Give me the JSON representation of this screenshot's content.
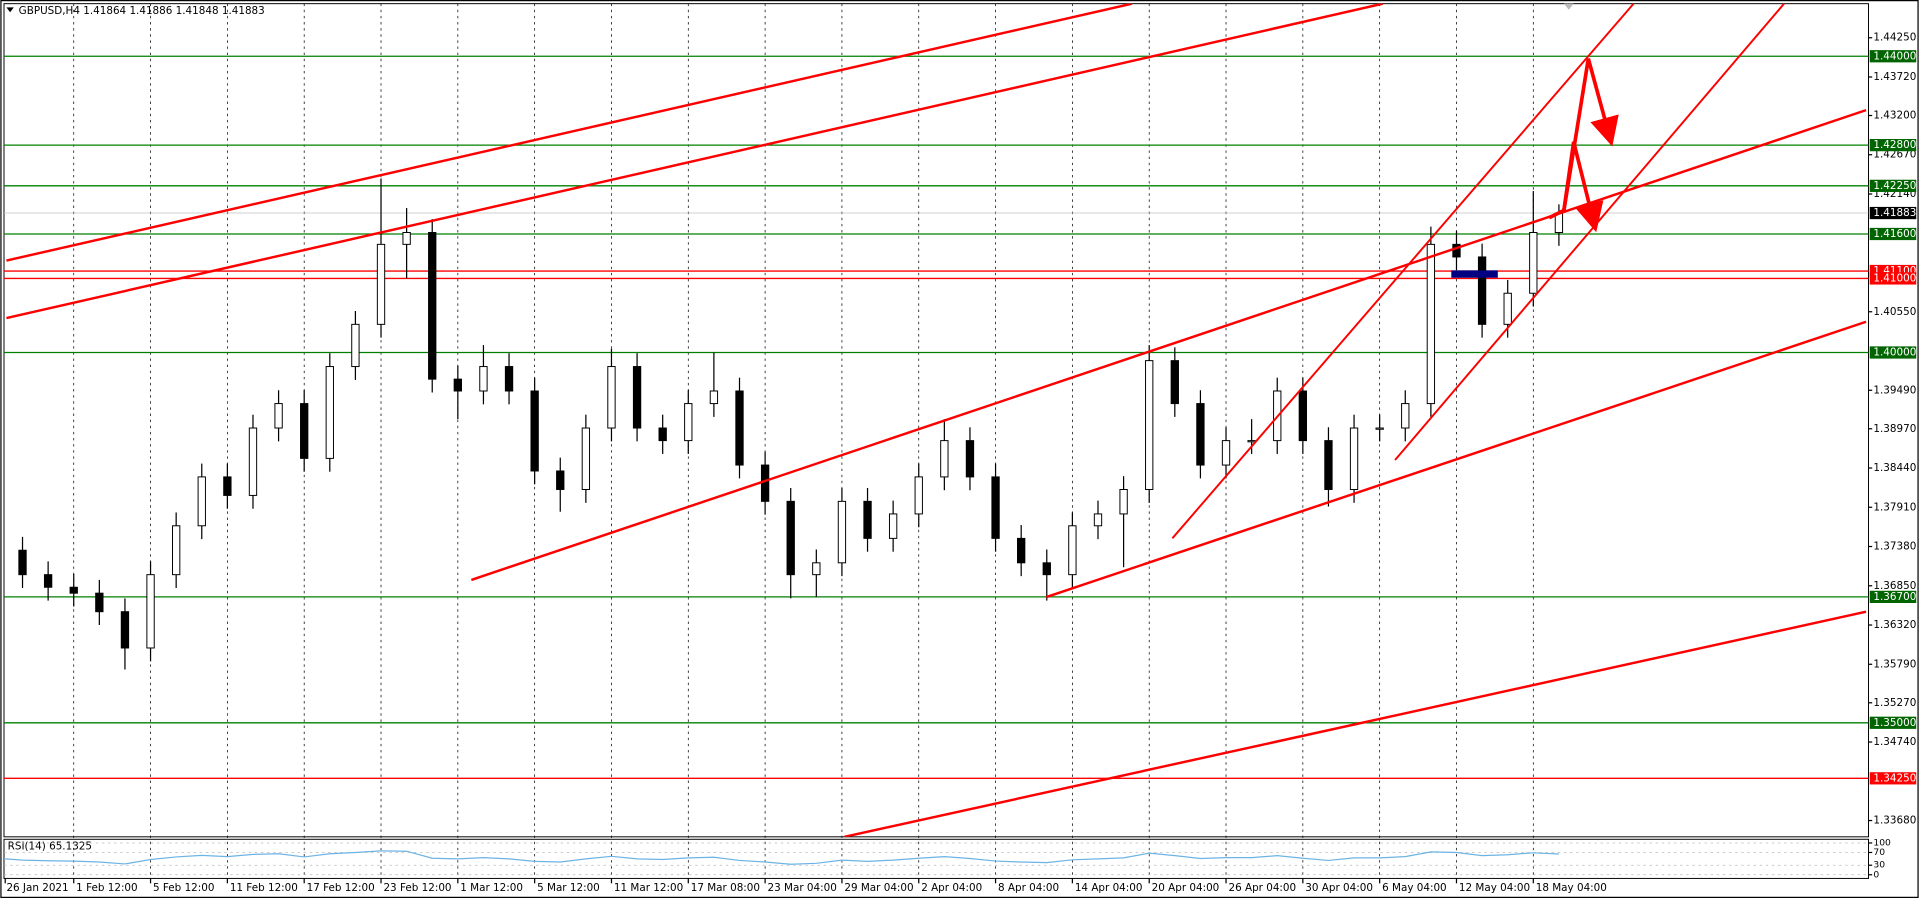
{
  "chart_data": [
    {
      "type": "candlestick",
      "title": "GBPUSD,H4  1.41864 1.41886 1.41848 1.41883",
      "categories": [
        "26 Jan 2021",
        null,
        null,
        "1 Feb 12:00",
        null,
        null,
        "5 Feb 12:00",
        null,
        null,
        "11 Feb 12:00",
        null,
        null,
        "17 Feb 12:00",
        null,
        null,
        "23 Feb 12:00",
        null,
        null,
        "1 Mar 12:00",
        null,
        null,
        "5 Mar 12:00",
        null,
        null,
        "11 Mar 12:00",
        null,
        null,
        "17 Mar 08:00",
        null,
        null,
        "23 Mar 04:00",
        null,
        null,
        "29 Mar 04:00",
        null,
        null,
        "2 Apr 04:00",
        null,
        null,
        "8 Apr 04:00",
        null,
        null,
        "14 Apr 04:00",
        null,
        null,
        "20 Apr 04:00",
        null,
        null,
        "26 Apr 04:00",
        null,
        null,
        "30 Apr 04:00",
        null,
        null,
        "6 May 04:00",
        null,
        null,
        "12 May 04:00",
        null,
        null,
        "18 May 04:00",
        null
      ],
      "open": [
        1.3745,
        1.3733,
        1.37,
        1.3683,
        1.3675,
        1.365,
        1.3601,
        1.37,
        1.3766,
        1.3832,
        1.3807,
        1.3898,
        1.3931,
        1.3857,
        1.3981,
        1.4038,
        1.4146,
        1.4162,
        1.3964,
        1.3948,
        1.3981,
        1.3948,
        1.384,
        1.3815,
        1.3898,
        1.3981,
        1.3898,
        1.3881,
        1.3931,
        1.3948,
        1.3848,
        1.3799,
        1.37,
        1.3716,
        1.3799,
        1.3749,
        1.3782,
        1.3832,
        1.3881,
        1.3832,
        1.3749,
        1.3716,
        1.37,
        1.3766,
        1.3782,
        1.3815,
        1.3989,
        1.3931,
        1.3848,
        1.3881,
        1.3881,
        1.3948,
        1.3881,
        1.3815,
        1.3898,
        1.3898,
        1.3931,
        1.4146,
        1.4129,
        1.4038,
        1.408,
        1.4162
      ],
      "high": [
        1.3763,
        1.3751,
        1.3718,
        1.3701,
        1.3693,
        1.3668,
        1.3718,
        1.3784,
        1.385,
        1.385,
        1.3916,
        1.3949,
        1.3949,
        1.3999,
        1.4056,
        1.4235,
        1.4195,
        1.418,
        1.3982,
        1.401,
        1.3999,
        1.3966,
        1.3858,
        1.3916,
        1.4005,
        1.3999,
        1.3916,
        1.3949,
        1.4,
        1.3966,
        1.3866,
        1.3817,
        1.3734,
        1.3817,
        1.3817,
        1.38,
        1.385,
        1.391,
        1.3899,
        1.385,
        1.3767,
        1.3734,
        1.3784,
        1.38,
        1.3833,
        1.401,
        1.4007,
        1.3949,
        1.3899,
        1.391,
        1.3966,
        1.3966,
        1.3899,
        1.3916,
        1.3916,
        1.3949,
        1.417,
        1.4164,
        1.4147,
        1.4098,
        1.4218,
        1.42
      ],
      "low": [
        1.3715,
        1.3682,
        1.3665,
        1.3657,
        1.3632,
        1.3572,
        1.3583,
        1.3682,
        1.3748,
        1.3789,
        1.3789,
        1.388,
        1.3839,
        1.3839,
        1.3963,
        1.402,
        1.41,
        1.3946,
        1.391,
        1.393,
        1.393,
        1.3822,
        1.3785,
        1.3797,
        1.388,
        1.388,
        1.3863,
        1.3863,
        1.3913,
        1.383,
        1.3781,
        1.3668,
        1.367,
        1.3698,
        1.3731,
        1.3731,
        1.3764,
        1.3814,
        1.3814,
        1.3731,
        1.3698,
        1.3665,
        1.3682,
        1.3748,
        1.371,
        1.3797,
        1.3913,
        1.383,
        1.383,
        1.3863,
        1.3863,
        1.3863,
        1.3792,
        1.3797,
        1.388,
        1.388,
        1.3913,
        1.4111,
        1.402,
        1.402,
        1.4062,
        1.4144
      ],
      "close": [
        1.3733,
        1.37,
        1.3683,
        1.3675,
        1.365,
        1.3601,
        1.37,
        1.3766,
        1.3832,
        1.3807,
        1.3898,
        1.3931,
        1.3857,
        1.3981,
        1.4038,
        1.4146,
        1.4162,
        1.3964,
        1.3948,
        1.3981,
        1.3948,
        1.384,
        1.3815,
        1.3898,
        1.3981,
        1.3898,
        1.3881,
        1.3931,
        1.3948,
        1.3848,
        1.3799,
        1.37,
        1.3716,
        1.3799,
        1.3749,
        1.3782,
        1.3832,
        1.3881,
        1.3832,
        1.3749,
        1.3716,
        1.37,
        1.3766,
        1.3782,
        1.3815,
        1.3989,
        1.3931,
        1.3848,
        1.3881,
        1.3881,
        1.3948,
        1.3881,
        1.3815,
        1.3898,
        1.3898,
        1.3931,
        1.4146,
        1.4129,
        1.4038,
        1.408,
        1.4162,
        1.41883
      ],
      "ylim": [
        1.3346,
        1.4471
      ],
      "yticks": [
        {
          "value": 1.4425,
          "label": "1.44250"
        },
        {
          "value": 1.4372,
          "label": "1.43720"
        },
        {
          "value": 1.432,
          "label": "1.43200"
        },
        {
          "value": 1.4267,
          "label": "1.42670"
        },
        {
          "value": 1.4214,
          "label": "1.42140"
        },
        {
          "value": 1.4055,
          "label": "1.40550"
        },
        {
          "value": 1.3949,
          "label": "1.39490"
        },
        {
          "value": 1.3897,
          "label": "1.38970"
        },
        {
          "value": 1.3844,
          "label": "1.38440"
        },
        {
          "value": 1.3791,
          "label": "1.37910"
        },
        {
          "value": 1.3738,
          "label": "1.37380"
        },
        {
          "value": 1.3685,
          "label": "1.36850"
        },
        {
          "value": 1.3632,
          "label": "1.36320"
        },
        {
          "value": 1.3579,
          "label": "1.35790"
        },
        {
          "value": 1.3527,
          "label": "1.35270"
        },
        {
          "value": 1.3474,
          "label": "1.34740"
        },
        {
          "value": 1.3368,
          "label": "1.33680"
        }
      ],
      "levels": [
        {
          "value": 1.44,
          "label": "1.44000",
          "color": "#008000"
        },
        {
          "value": 1.428,
          "label": "1.42800",
          "color": "#008000"
        },
        {
          "value": 1.4225,
          "label": "1.42250",
          "color": "#008000"
        },
        {
          "value": 1.416,
          "label": "1.41600",
          "color": "#008000"
        },
        {
          "value": 1.411,
          "label": "1.41100",
          "color": "#ff0000"
        },
        {
          "value": 1.41,
          "label": "1.41000",
          "color": "#ff0000"
        },
        {
          "value": 1.4,
          "label": "1.40000",
          "color": "#008000"
        },
        {
          "value": 1.367,
          "label": "1.36700",
          "color": "#008000"
        },
        {
          "value": 1.35,
          "label": "1.35000",
          "color": "#008000"
        },
        {
          "value": 1.3425,
          "label": "1.34250",
          "color": "#ff0000"
        }
      ],
      "last_price": {
        "value": 1.41883,
        "label": "1.41883"
      },
      "grid": true
    },
    {
      "type": "line",
      "title": "RSI(14) 65.1325",
      "color": "#6cb4e4",
      "values": [
        52,
        46,
        44,
        43,
        40,
        34,
        48,
        56,
        61,
        57,
        64,
        66,
        56,
        66,
        70,
        75,
        74,
        52,
        50,
        54,
        50,
        42,
        40,
        50,
        58,
        50,
        48,
        53,
        55,
        45,
        40,
        33,
        36,
        46,
        42,
        46,
        52,
        57,
        51,
        43,
        40,
        38,
        47,
        50,
        53,
        68,
        60,
        51,
        54,
        54,
        60,
        52,
        45,
        53,
        53,
        57,
        72,
        70,
        60,
        63,
        69,
        65.1325
      ],
      "ylim": [
        0,
        100
      ],
      "yticks": [
        0,
        30,
        70,
        100
      ]
    }
  ]
}
